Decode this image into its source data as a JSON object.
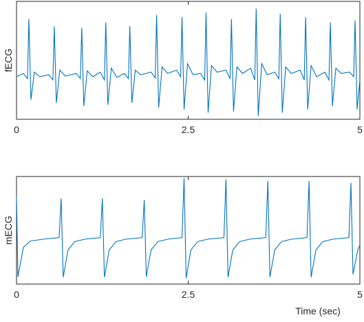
{
  "chart_data": [
    {
      "type": "line",
      "ylabel": "fECG",
      "x": [
        0,
        0.1,
        0.16,
        0.18,
        0.21,
        0.26,
        0.34,
        0.47,
        0.53,
        0.55,
        0.58,
        0.63,
        0.71,
        0.87,
        0.93,
        0.95,
        0.98,
        1.03,
        1.11,
        1.22,
        1.28,
        1.3,
        1.33,
        1.38,
        1.46,
        1.57,
        1.63,
        1.65,
        1.68,
        1.73,
        1.81,
        1.96,
        2.02,
        2.04,
        2.07,
        2.12,
        2.2,
        2.33,
        2.39,
        2.41,
        2.44,
        2.49,
        2.57,
        2.68,
        2.74,
        2.76,
        2.79,
        2.84,
        2.92,
        3.05,
        3.11,
        3.13,
        3.16,
        3.21,
        3.29,
        3.41,
        3.47,
        3.49,
        3.52,
        3.57,
        3.65,
        3.76,
        3.82,
        3.84,
        3.87,
        3.92,
        4.0,
        4.13,
        4.19,
        4.21,
        4.24,
        4.29,
        4.37,
        4.49,
        4.55,
        4.57,
        4.6,
        4.65,
        4.73,
        4.85,
        4.91,
        4.93,
        4.96,
        5.0
      ],
      "series": [
        {
          "color": "#0072bd",
          "values": [
            0.05,
            0.1,
            0.02,
            0.93,
            -0.3,
            0.12,
            0.05,
            0.08,
            0.0,
            0.82,
            -0.35,
            0.15,
            0.06,
            0.1,
            0.02,
            0.8,
            -0.4,
            0.14,
            0.05,
            0.12,
            0.0,
            0.88,
            -0.38,
            0.18,
            0.04,
            0.1,
            0.02,
            0.82,
            -0.35,
            0.15,
            0.08,
            0.12,
            0.03,
            0.99,
            -0.42,
            0.2,
            0.1,
            0.15,
            0.05,
            0.96,
            -0.45,
            0.25,
            0.08,
            0.1,
            0.0,
            1.03,
            -0.5,
            0.22,
            0.12,
            0.15,
            0.02,
            0.93,
            -0.48,
            0.2,
            0.1,
            0.18,
            0.0,
            1.09,
            -0.55,
            0.25,
            0.08,
            0.12,
            0.02,
            1.01,
            -0.5,
            0.2,
            0.1,
            0.15,
            0.0,
            0.96,
            -0.45,
            0.22,
            0.05,
            0.12,
            0.0,
            0.88,
            -0.4,
            0.18,
            0.1,
            0.12,
            0.05,
            0.91,
            -0.45,
            0.0
          ]
        }
      ],
      "xlim": [
        0,
        5
      ],
      "xticks": [
        0,
        2.5,
        5
      ],
      "ylim": [
        -0.6,
        1.2
      ]
    },
    {
      "type": "line",
      "ylabel": "mECG",
      "xlabel": "Time (sec)",
      "x": [
        0,
        0.02,
        0.1,
        0.2,
        0.4,
        0.62,
        0.65,
        0.68,
        0.75,
        0.85,
        1.0,
        1.22,
        1.25,
        1.28,
        1.35,
        1.45,
        1.6,
        1.83,
        1.86,
        1.89,
        1.96,
        2.06,
        2.21,
        2.41,
        2.44,
        2.47,
        2.54,
        2.64,
        2.79,
        3.02,
        3.05,
        3.08,
        3.15,
        3.25,
        3.4,
        3.63,
        3.66,
        3.69,
        3.76,
        3.86,
        4.01,
        4.23,
        4.26,
        4.29,
        4.36,
        4.46,
        4.61,
        4.84,
        4.87,
        4.9,
        4.97,
        5.0
      ],
      "series": [
        {
          "color": "#0072bd",
          "values": [
            0.9,
            -0.75,
            -0.15,
            -0.02,
            0.02,
            0.05,
            0.85,
            -0.76,
            -0.2,
            -0.03,
            0.02,
            0.05,
            0.85,
            -0.76,
            -0.2,
            -0.03,
            0.02,
            0.05,
            0.82,
            -0.75,
            -0.2,
            -0.03,
            0.02,
            0.05,
            1.27,
            -0.78,
            -0.2,
            -0.03,
            0.02,
            0.05,
            1.24,
            -0.76,
            -0.2,
            -0.03,
            0.02,
            0.05,
            1.21,
            -0.76,
            -0.2,
            -0.03,
            0.02,
            0.05,
            1.21,
            -0.76,
            -0.2,
            -0.03,
            0.02,
            0.05,
            1.17,
            -0.7,
            -0.2,
            -0.1
          ]
        }
      ],
      "xlim": [
        0,
        5
      ],
      "xticks": [
        0,
        2.5,
        5
      ],
      "ylim": [
        -0.9,
        1.3
      ]
    }
  ]
}
